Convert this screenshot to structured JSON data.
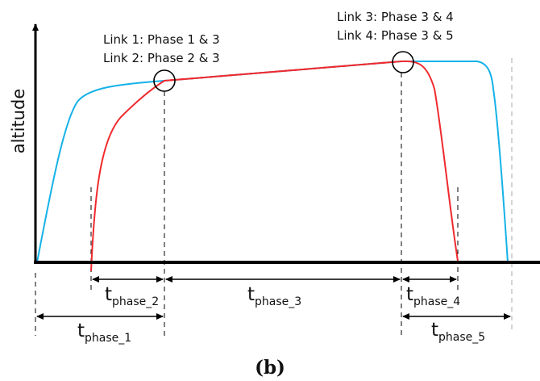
{
  "figure": {
    "y_axis_label": "altitude",
    "caption": "(b)",
    "colors": {
      "blue": "#15b2e8",
      "red": "#ef2a2e",
      "axis": "#000000"
    }
  },
  "link_notes": {
    "link1": "Link 1: Phase 1 & 3",
    "link2": "Link 2: Phase 2 & 3",
    "link3": "Link 3: Phase 3 & 4",
    "link4": "Link 4: Phase 3 & 5"
  },
  "durations": {
    "phase_1": {
      "t": "t",
      "sub": "phase_1"
    },
    "phase_2": {
      "t": "t",
      "sub": "phase_2"
    },
    "phase_3": {
      "t": "t",
      "sub": "phase_3"
    },
    "phase_4": {
      "t": "t",
      "sub": "phase_4"
    },
    "phase_5": {
      "t": "t",
      "sub": "phase_5"
    }
  }
}
